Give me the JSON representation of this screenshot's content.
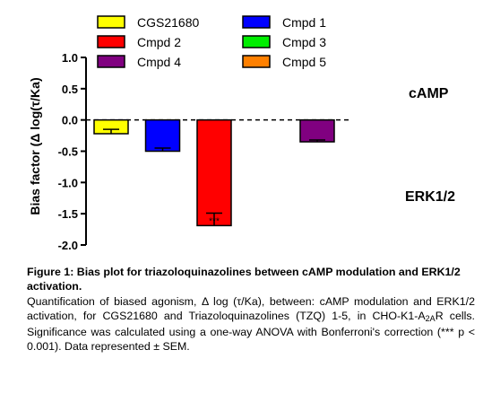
{
  "chart_data": {
    "type": "bar",
    "ylabel": "Bias factor (Δ log(τ/Ka)",
    "ylim": [
      -2.0,
      1.0
    ],
    "yticks": [
      "1.0",
      "0.5",
      "0.0",
      "-0.5",
      "-1.0",
      "-1.5",
      "-2.0"
    ],
    "ytick_values": [
      1.0,
      0.5,
      0.0,
      -0.5,
      -1.0,
      -1.5,
      -2.0
    ],
    "grid": false,
    "legend_position": "top",
    "upper_label": "cAMP",
    "lower_label": "ERK1/2",
    "series": [
      {
        "name": "CGS21680",
        "value": -0.22,
        "error": 0.07,
        "color": "#ffff00",
        "sig": ""
      },
      {
        "name": "Cmpd 1",
        "value": -0.5,
        "error": 0.05,
        "color": "#0000ff",
        "sig": ""
      },
      {
        "name": "Cmpd 2",
        "value": -1.69,
        "error": 0.2,
        "color": "#ff0000",
        "sig": "***"
      },
      {
        "name": "Cmpd 3",
        "value": null,
        "error": null,
        "color": "#00ee00",
        "sig": ""
      },
      {
        "name": "Cmpd 4",
        "value": -0.35,
        "error": 0.03,
        "color": "#800080",
        "sig": ""
      },
      {
        "name": "Cmpd 5",
        "value": null,
        "error": null,
        "color": "#ff8000",
        "sig": ""
      }
    ]
  },
  "caption": {
    "title": "Figure 1: Bias plot for triazoloquinazolines between cAMP modulation and ERK1/2 activation.",
    "body_start": "Quantification of biased agonism, Δ log (τ/Ka), between: cAMP modulation and ERK1/2 activation, for CGS21680 and Triazoloquinazolines (TZQ) 1-5, in CHO-K1-A",
    "body_sub": "2A",
    "body_end": "R cells. Significance was calculated using a one-way ANOVA with Bonferroni's correction (*** p < 0.001). Data represented ± SEM."
  }
}
